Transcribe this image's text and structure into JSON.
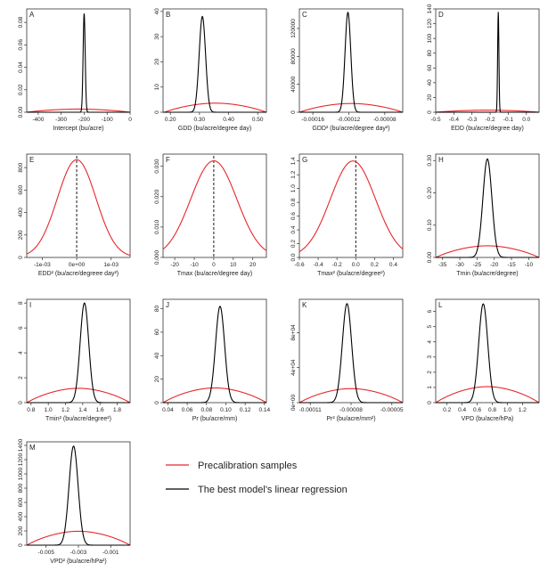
{
  "colors": {
    "precal": "#e8262a",
    "best": "#000000"
  },
  "legend": {
    "items": [
      {
        "label": "Precalibration samples",
        "color": "#e8262a"
      },
      {
        "label": "The best model's linear regression",
        "color": "#000000"
      }
    ]
  },
  "chart_data": [
    {
      "id": "A",
      "type": "line",
      "label": "A",
      "xlabel": "Intercept (bu/acre)",
      "xlim": [
        -450,
        0
      ],
      "ylim": [
        0,
        0.092
      ],
      "xticks": [
        -400,
        -300,
        -200,
        -100,
        0
      ],
      "xtick_labels": [
        "-400",
        "-300",
        "-200",
        "-100",
        "0"
      ],
      "yticks": [
        0,
        0.02,
        0.04,
        0.06,
        0.08
      ],
      "ytick_labels": [
        "0.00",
        "0.02",
        "0.04",
        "0.06",
        "0.08"
      ],
      "series": [
        {
          "color": "#e8262a",
          "kind": "plateau",
          "params": {
            "lo": -450,
            "hi": 0,
            "peak": 0.0028,
            "sharp": 0.04
          }
        },
        {
          "color": "#000000",
          "kind": "gauss",
          "params": {
            "mu": -200,
            "sigma": 4.5,
            "peak": 0.088
          }
        }
      ]
    },
    {
      "id": "B",
      "type": "line",
      "label": "B",
      "xlabel": "GDD (bu/acre/degree day)",
      "xlim": [
        0.175,
        0.53
      ],
      "ylim": [
        0,
        41
      ],
      "xticks": [
        0.2,
        0.3,
        0.4,
        0.5
      ],
      "xtick_labels": [
        "0.20",
        "0.30",
        "0.40",
        "0.50"
      ],
      "yticks": [
        0,
        10,
        20,
        30,
        40
      ],
      "ytick_labels": [
        "0",
        "10",
        "20",
        "30",
        "40"
      ],
      "series": [
        {
          "color": "#e8262a",
          "kind": "plateau",
          "params": {
            "lo": 0.18,
            "hi": 0.53,
            "peak": 3.6,
            "sharp": 35
          }
        },
        {
          "color": "#000000",
          "kind": "gauss",
          "params": {
            "mu": 0.31,
            "sigma": 0.011,
            "peak": 38
          }
        }
      ]
    },
    {
      "id": "C",
      "type": "line",
      "label": "C",
      "xlabel": "GDD² (bu/acre/degree day²)",
      "xlim": [
        -0.000175,
        -6e-05
      ],
      "ylim": [
        0,
        148000
      ],
      "xticks": [
        -0.00016,
        -0.00012,
        -8e-05
      ],
      "xtick_labels": [
        "-0.00016",
        "-0.00012",
        "-0.00008"
      ],
      "yticks": [
        0,
        40000,
        80000,
        120000
      ],
      "ytick_labels": [
        "0",
        "40000",
        "80000",
        "120000"
      ],
      "series": [
        {
          "color": "#e8262a",
          "kind": "plateau",
          "params": {
            "lo": -0.000175,
            "hi": -6e-05,
            "peak": 12500,
            "sharp": 90000
          }
        },
        {
          "color": "#000000",
          "kind": "gauss",
          "params": {
            "mu": -0.000121,
            "sigma": 3.2e-06,
            "peak": 143000
          }
        }
      ]
    },
    {
      "id": "D",
      "type": "line",
      "label": "D",
      "xlabel": "EDD (bu/acre/degree day)",
      "xlim": [
        -0.5,
        0.07
      ],
      "ylim": [
        0,
        140
      ],
      "xticks": [
        -0.5,
        -0.4,
        -0.3,
        -0.2,
        -0.1,
        0.0
      ],
      "xtick_labels": [
        "-0.5",
        "-0.4",
        "-0.3",
        "-0.2",
        "-0.1",
        "0.0"
      ],
      "yticks": [
        0,
        20,
        40,
        60,
        80,
        100,
        120,
        140
      ],
      "ytick_labels": [
        "0",
        "20",
        "40",
        "60",
        "80",
        "100",
        "120",
        "140"
      ],
      "series": [
        {
          "color": "#e8262a",
          "kind": "plateau",
          "params": {
            "lo": -0.5,
            "hi": 0.07,
            "peak": 2.8,
            "sharp": 20
          }
        },
        {
          "color": "#000000",
          "kind": "gauss",
          "params": {
            "mu": -0.155,
            "sigma": 0.0035,
            "peak": 136
          }
        }
      ]
    },
    {
      "id": "E",
      "type": "line",
      "label": "E",
      "xlabel": "EDD² (bu/acre/degreee day²)",
      "xlim": [
        -0.00145,
        0.00155
      ],
      "ylim": [
        0,
        920
      ],
      "xticks": [
        -0.001,
        0,
        0.001
      ],
      "xtick_labels": [
        "-1e-03",
        "0e+00",
        "1e-03"
      ],
      "yticks": [
        0,
        200,
        400,
        600,
        800
      ],
      "ytick_labels": [
        "0",
        "200",
        "400",
        "600",
        "800"
      ],
      "vline": 0,
      "series": [
        {
          "color": "#e8262a",
          "kind": "gauss",
          "params": {
            "mu": 0,
            "sigma": 0.00056,
            "peak": 870
          }
        }
      ]
    },
    {
      "id": "F",
      "type": "line",
      "label": "F",
      "xlabel": "Tmax (bu/acre/degree day)",
      "xlim": [
        -26,
        27
      ],
      "ylim": [
        0,
        0.034
      ],
      "xticks": [
        -20,
        -10,
        0,
        10,
        20
      ],
      "xtick_labels": [
        "-20",
        "-10",
        "0",
        "10",
        "20"
      ],
      "yticks": [
        0,
        0.01,
        0.02,
        0.03
      ],
      "ytick_labels": [
        "0.000",
        "0.010",
        "0.020",
        "0.030"
      ],
      "vline": 0,
      "series": [
        {
          "color": "#e8262a",
          "kind": "bimodal",
          "params": {
            "mu1": -4,
            "mu2": 4,
            "sigma": 11,
            "peak": 0.0318
          }
        }
      ]
    },
    {
      "id": "G",
      "type": "line",
      "label": "G",
      "xlabel": "Tmax² (bu/acre/degree²)",
      "xlim": [
        -0.6,
        0.5
      ],
      "ylim": [
        0,
        1.5
      ],
      "xticks": [
        -0.6,
        -0.4,
        -0.2,
        0,
        0.2,
        0.4
      ],
      "xtick_labels": [
        "-0.6",
        "-0.4",
        "-0.2",
        "0.0",
        "0.2",
        "0.4"
      ],
      "yticks": [
        0,
        0.2,
        0.4,
        0.6,
        0.8,
        1.0,
        1.2,
        1.4
      ],
      "ytick_labels": [
        "0.0",
        "0.2",
        "0.4",
        "0.6",
        "0.8",
        "1.0",
        "1.2",
        "1.4"
      ],
      "vline": 0,
      "series": [
        {
          "color": "#e8262a",
          "kind": "gauss",
          "params": {
            "mu": -0.03,
            "sigma": 0.24,
            "peak": 1.4
          }
        }
      ]
    },
    {
      "id": "H",
      "type": "line",
      "label": "H",
      "xlabel": "Tmin (bu/acre/degree)",
      "xlim": [
        -37,
        -7
      ],
      "ylim": [
        0,
        0.32
      ],
      "xticks": [
        -35,
        -30,
        -25,
        -20,
        -15,
        -10
      ],
      "xtick_labels": [
        "-35",
        "-30",
        "-25",
        "-20",
        "-15",
        "-10"
      ],
      "yticks": [
        0,
        0.1,
        0.2,
        0.3
      ],
      "ytick_labels": [
        "0.00",
        "0.10",
        "0.20",
        "0.30"
      ],
      "series": [
        {
          "color": "#e8262a",
          "kind": "plateau",
          "params": {
            "lo": -37,
            "hi": -7,
            "peak": 0.036,
            "sharp": 0.5
          }
        },
        {
          "color": "#000000",
          "kind": "gauss",
          "params": {
            "mu": -22,
            "sigma": 1.3,
            "peak": 0.305
          }
        }
      ]
    },
    {
      "id": "I",
      "type": "line",
      "label": "I",
      "xlabel": "Tmin² (bu/acre/degree²)",
      "xlim": [
        0.75,
        1.95
      ],
      "ylim": [
        0,
        8.3
      ],
      "xticks": [
        0.8,
        1.0,
        1.2,
        1.4,
        1.6,
        1.8
      ],
      "xtick_labels": [
        "0.8",
        "1.0",
        "1.2",
        "1.4",
        "1.6",
        "1.8"
      ],
      "yticks": [
        0,
        2,
        4,
        6,
        8
      ],
      "ytick_labels": [
        "0",
        "2",
        "4",
        "6",
        "8"
      ],
      "series": [
        {
          "color": "#e8262a",
          "kind": "plateau",
          "params": {
            "lo": 0.75,
            "hi": 1.95,
            "peak": 1.15,
            "sharp": 12
          }
        },
        {
          "color": "#000000",
          "kind": "gauss",
          "params": {
            "mu": 1.42,
            "sigma": 0.05,
            "peak": 8
          }
        }
      ]
    },
    {
      "id": "J",
      "type": "line",
      "label": "J",
      "xlabel": "Pr (bu/acre/mm)",
      "xlim": [
        0.035,
        0.142
      ],
      "ylim": [
        0,
        88
      ],
      "xticks": [
        0.04,
        0.06,
        0.08,
        0.1,
        0.12,
        0.14
      ],
      "xtick_labels": [
        "0.04",
        "0.06",
        "0.08",
        "0.10",
        "0.12",
        "0.14"
      ],
      "yticks": [
        0,
        20,
        40,
        60,
        80
      ],
      "ytick_labels": [
        "0",
        "20",
        "40",
        "60",
        "80"
      ],
      "series": [
        {
          "color": "#e8262a",
          "kind": "plateau",
          "params": {
            "lo": 0.035,
            "hi": 0.142,
            "peak": 12.5,
            "sharp": 120
          }
        },
        {
          "color": "#000000",
          "kind": "gauss",
          "params": {
            "mu": 0.094,
            "sigma": 0.0047,
            "peak": 82
          }
        }
      ]
    },
    {
      "id": "K",
      "type": "line",
      "label": "K",
      "xlabel": "Pr² (bu/acre/mm²)",
      "xlim": [
        -0.000118,
        -4.2e-05
      ],
      "ylim": [
        0,
        118000
      ],
      "xticks": [
        -0.00011,
        -8e-05,
        -5e-05
      ],
      "xtick_labels": [
        "-0.00011",
        "-0.00008",
        "-0.00005"
      ],
      "yticks": [
        0,
        40000,
        80000
      ],
      "ytick_labels": [
        "0e+00",
        "4e+04",
        "8e+04"
      ],
      "series": [
        {
          "color": "#e8262a",
          "kind": "plateau",
          "params": {
            "lo": -0.000118,
            "hi": -4.2e-05,
            "peak": 16000,
            "sharp": 200000
          }
        },
        {
          "color": "#000000",
          "kind": "gauss",
          "params": {
            "mu": -8.3e-05,
            "sigma": 3.4e-06,
            "peak": 113000
          }
        }
      ]
    },
    {
      "id": "L",
      "type": "line",
      "label": "L",
      "xlabel": "VPD (bu/acre/hPa)",
      "xlim": [
        0.05,
        1.42
      ],
      "ylim": [
        0,
        6.8
      ],
      "xticks": [
        0.2,
        0.4,
        0.6,
        0.8,
        1.0,
        1.2
      ],
      "xtick_labels": [
        "0.2",
        "0.4",
        "0.6",
        "0.8",
        "1.0",
        "1.2"
      ],
      "yticks": [
        0,
        1,
        2,
        3,
        4,
        5,
        6
      ],
      "ytick_labels": [
        "0",
        "1",
        "2",
        "3",
        "4",
        "5",
        "6"
      ],
      "series": [
        {
          "color": "#e8262a",
          "kind": "plateau",
          "params": {
            "lo": 0.05,
            "hi": 1.42,
            "peak": 1.05,
            "sharp": 10
          }
        },
        {
          "color": "#000000",
          "kind": "gauss",
          "params": {
            "mu": 0.68,
            "sigma": 0.06,
            "peak": 6.5
          }
        }
      ]
    },
    {
      "id": "M",
      "type": "line",
      "label": "M",
      "xlabel": "VPD² (bu/acre/hPa²)",
      "xlim": [
        -0.0062,
        0.0002
      ],
      "ylim": [
        0,
        1450
      ],
      "xticks": [
        -0.005,
        -0.003,
        -0.001
      ],
      "xtick_labels": [
        "-0.005",
        "-0.003",
        "-0.001"
      ],
      "yticks": [
        0,
        200,
        400,
        600,
        800,
        1000,
        1200,
        1400
      ],
      "ytick_labels": [
        "0",
        "200",
        "400",
        "600",
        "800",
        "1000",
        "1200",
        "1400"
      ],
      "series": [
        {
          "color": "#e8262a",
          "kind": "plateau",
          "params": {
            "lo": -0.0062,
            "hi": 0.0002,
            "peak": 195,
            "sharp": 2200
          }
        },
        {
          "color": "#000000",
          "kind": "gauss",
          "params": {
            "mu": -0.0033,
            "sigma": 0.00028,
            "peak": 1390
          }
        }
      ]
    }
  ]
}
